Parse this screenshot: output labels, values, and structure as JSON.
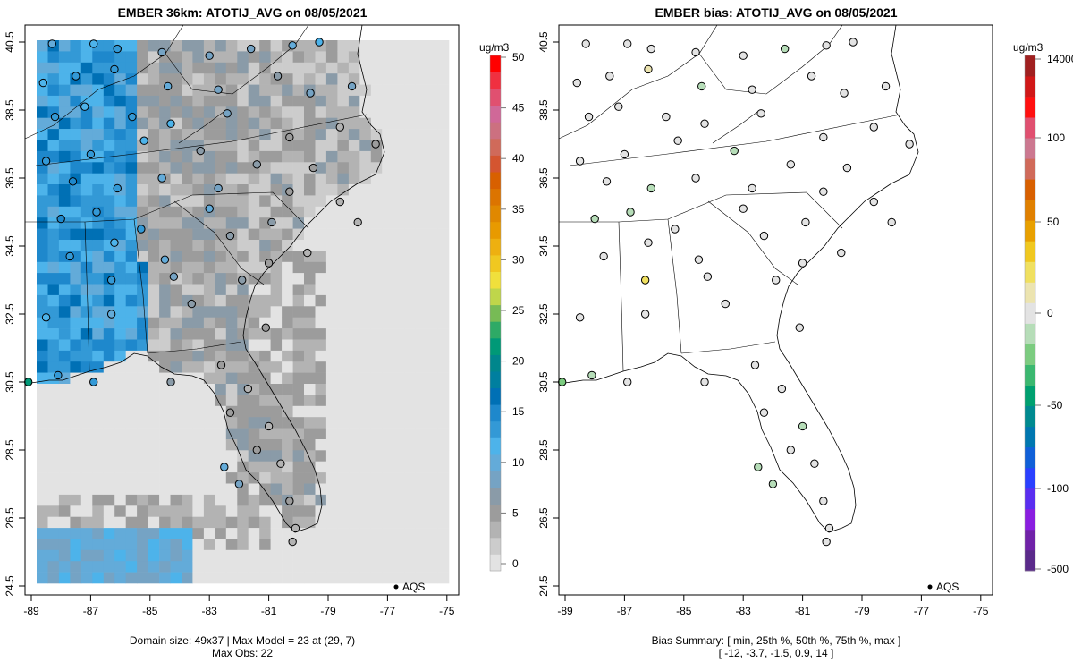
{
  "left_panel": {
    "title": "EMBER 36km: ATOTIJ_AVG on 08/05/2021",
    "footer_line1": "Domain size: 49x37 | Max Model = 23 at (29, 7)",
    "footer_line2": "Max Obs: 22",
    "legend_label": "AQS",
    "colorbar": {
      "unit": "ug/m3",
      "ticks": [
        "0",
        "5",
        "10",
        "15",
        "20",
        "25",
        "30",
        "35",
        "40",
        "45",
        "50"
      ],
      "colors": [
        "#e3e3e3",
        "#cccccc",
        "#b3b3b3",
        "#9c9c9c",
        "#8a9ba8",
        "#75a3c4",
        "#63abd9",
        "#4db3ea",
        "#3399d6",
        "#1e88cc",
        "#0070b5",
        "#007f9f",
        "#00868c",
        "#009977",
        "#2eaa66",
        "#77bb55",
        "#bfd64a",
        "#f0e03c",
        "#f0c820",
        "#eeb010",
        "#e89a00",
        "#e08800",
        "#dc7400",
        "#d86000",
        "#d45530",
        "#d06a5a",
        "#cc7080",
        "#d06898",
        "#e05070",
        "#f03040",
        "#ff0000"
      ]
    },
    "x_ticks": [
      "-89",
      "-87",
      "-85",
      "-83",
      "-81",
      "-79",
      "-77",
      "-75"
    ],
    "y_ticks": [
      "24.5",
      "26.5",
      "28.5",
      "30.5",
      "32.5",
      "34.5",
      "36.5",
      "38.5",
      "40.5"
    ]
  },
  "right_panel": {
    "title": "EMBER bias: ATOTIJ_AVG on 08/05/2021",
    "footer_line1": "Bias Summary: [ min, 25th %, 50th %, 75th %, max ]",
    "footer_line2": "[ -12,   -3.7,   -1.5,   0.9,   14 ]",
    "legend_label": "AQS",
    "colorbar": {
      "unit": "ug/m3",
      "ticks": [
        "-500",
        "-100",
        "-50",
        "0",
        "50",
        "100",
        "14000"
      ],
      "colors": [
        "#5a2a8a",
        "#7022a8",
        "#8a1ee0",
        "#5a2ef0",
        "#2a40ff",
        "#1060d8",
        "#0077b0",
        "#008a90",
        "#00a070",
        "#3bb870",
        "#7ccc80",
        "#b6ddb8",
        "#e3e3e3",
        "#ece4b0",
        "#f0e060",
        "#f0c820",
        "#e8a000",
        "#e08000",
        "#d86000",
        "#d06a5a",
        "#cc7890",
        "#e05070",
        "#ff1010",
        "#d01818",
        "#a02020"
      ]
    },
    "x_ticks": [
      "-89",
      "-87",
      "-85",
      "-83",
      "-81",
      "-79",
      "-77",
      "-75"
    ],
    "y_ticks": [
      "24.5",
      "26.5",
      "28.5",
      "30.5",
      "32.5",
      "34.5",
      "36.5",
      "38.5",
      "40.5"
    ]
  },
  "sites": [
    {
      "lon": -88.3,
      "lat": 40.45,
      "obs": 11,
      "bias": -2
    },
    {
      "lon": -86.9,
      "lat": 40.45,
      "obs": 12,
      "bias": -1
    },
    {
      "lon": -86.1,
      "lat": 40.3,
      "obs": 13,
      "bias": -1
    },
    {
      "lon": -84.6,
      "lat": 40.2,
      "obs": 9,
      "bias": -3
    },
    {
      "lon": -83.0,
      "lat": 40.1,
      "obs": 8,
      "bias": -2
    },
    {
      "lon": -81.6,
      "lat": 40.3,
      "obs": 9,
      "bias": -4
    },
    {
      "lon": -80.2,
      "lat": 40.4,
      "obs": 10,
      "bias": -3
    },
    {
      "lon": -79.3,
      "lat": 40.5,
      "obs": 12,
      "bias": 2
    },
    {
      "lon": -88.6,
      "lat": 39.3,
      "obs": 12,
      "bias": -1
    },
    {
      "lon": -87.5,
      "lat": 39.5,
      "obs": 13,
      "bias": 0
    },
    {
      "lon": -86.2,
      "lat": 39.7,
      "obs": 14,
      "bias": 3
    },
    {
      "lon": -84.4,
      "lat": 39.2,
      "obs": 11,
      "bias": -5
    },
    {
      "lon": -82.7,
      "lat": 39.1,
      "obs": 9,
      "bias": -2
    },
    {
      "lon": -80.7,
      "lat": 39.5,
      "obs": 7,
      "bias": -3
    },
    {
      "lon": -79.6,
      "lat": 39.0,
      "obs": 8,
      "bias": -1
    },
    {
      "lon": -78.2,
      "lat": 39.2,
      "obs": 9,
      "bias": -2
    },
    {
      "lon": -88.2,
      "lat": 38.3,
      "obs": 14,
      "bias": 1
    },
    {
      "lon": -87.2,
      "lat": 38.6,
      "obs": 12,
      "bias": -1
    },
    {
      "lon": -85.6,
      "lat": 38.3,
      "obs": 13,
      "bias": -2
    },
    {
      "lon": -84.3,
      "lat": 38.1,
      "obs": 12,
      "bias": -3
    },
    {
      "lon": -82.4,
      "lat": 38.4,
      "obs": 8,
      "bias": -1
    },
    {
      "lon": -80.3,
      "lat": 37.7,
      "obs": 5,
      "bias": -2
    },
    {
      "lon": -78.6,
      "lat": 38.0,
      "obs": 4,
      "bias": 0
    },
    {
      "lon": -77.4,
      "lat": 37.5,
      "obs": 5,
      "bias": -1
    },
    {
      "lon": -88.5,
      "lat": 37.0,
      "obs": 14,
      "bias": -3
    },
    {
      "lon": -87.0,
      "lat": 37.2,
      "obs": 13,
      "bias": -1
    },
    {
      "lon": -85.2,
      "lat": 37.6,
      "obs": 12,
      "bias": -2
    },
    {
      "lon": -83.3,
      "lat": 37.3,
      "obs": 7,
      "bias": -4
    },
    {
      "lon": -81.4,
      "lat": 36.9,
      "obs": 6,
      "bias": -3
    },
    {
      "lon": -79.5,
      "lat": 36.8,
      "obs": 5,
      "bias": -2
    },
    {
      "lon": -87.6,
      "lat": 36.4,
      "obs": 15,
      "bias": -1
    },
    {
      "lon": -86.1,
      "lat": 36.2,
      "obs": 14,
      "bias": -6
    },
    {
      "lon": -84.6,
      "lat": 36.5,
      "obs": 11,
      "bias": -3
    },
    {
      "lon": -82.7,
      "lat": 36.2,
      "obs": 8,
      "bias": -2
    },
    {
      "lon": -80.3,
      "lat": 36.1,
      "obs": 5,
      "bias": -1
    },
    {
      "lon": -78.6,
      "lat": 35.8,
      "obs": 4,
      "bias": -2
    },
    {
      "lon": -88.0,
      "lat": 35.3,
      "obs": 16,
      "bias": -8
    },
    {
      "lon": -86.8,
      "lat": 35.5,
      "obs": 14,
      "bias": -4
    },
    {
      "lon": -85.3,
      "lat": 35.0,
      "obs": 13,
      "bias": -3
    },
    {
      "lon": -83.0,
      "lat": 35.6,
      "obs": 10,
      "bias": -2
    },
    {
      "lon": -80.9,
      "lat": 35.2,
      "obs": 6,
      "bias": -3
    },
    {
      "lon": -78.0,
      "lat": 35.2,
      "obs": 4,
      "bias": 0
    },
    {
      "lon": -87.7,
      "lat": 34.2,
      "obs": 13,
      "bias": -2
    },
    {
      "lon": -86.2,
      "lat": 34.6,
      "obs": 12,
      "bias": -3
    },
    {
      "lon": -84.5,
      "lat": 34.1,
      "obs": 10,
      "bias": -2
    },
    {
      "lon": -82.3,
      "lat": 34.8,
      "obs": 7,
      "bias": -1
    },
    {
      "lon": -81.0,
      "lat": 34.0,
      "obs": 5,
      "bias": -1
    },
    {
      "lon": -79.7,
      "lat": 34.3,
      "obs": 4,
      "bias": -2
    },
    {
      "lon": -88.5,
      "lat": 32.4,
      "obs": 12,
      "bias": -1
    },
    {
      "lon": -86.3,
      "lat": 32.5,
      "obs": 11,
      "bias": -2
    },
    {
      "lon": -84.2,
      "lat": 33.6,
      "obs": 9,
      "bias": -3
    },
    {
      "lon": -83.6,
      "lat": 32.8,
      "obs": 7,
      "bias": -2
    },
    {
      "lon": -81.9,
      "lat": 33.5,
      "obs": 6,
      "bias": -1
    },
    {
      "lon": -81.1,
      "lat": 32.1,
      "obs": 5,
      "bias": -2
    },
    {
      "lon": -88.1,
      "lat": 30.7,
      "obs": 14,
      "bias": -4
    },
    {
      "lon": -86.9,
      "lat": 30.5,
      "obs": 13,
      "bias": -1
    },
    {
      "lon": -84.3,
      "lat": 30.5,
      "obs": 6,
      "bias": -2
    },
    {
      "lon": -82.6,
      "lat": 31.0,
      "obs": 5,
      "bias": -1
    },
    {
      "lon": -81.7,
      "lat": 30.3,
      "obs": 4,
      "bias": -3
    },
    {
      "lon": -82.3,
      "lat": 29.6,
      "obs": 5,
      "bias": -2
    },
    {
      "lon": -81.0,
      "lat": 29.2,
      "obs": 4,
      "bias": -4
    },
    {
      "lon": -82.5,
      "lat": 28.0,
      "obs": 11,
      "bias": -8
    },
    {
      "lon": -81.4,
      "lat": 28.5,
      "obs": 5,
      "bias": -3
    },
    {
      "lon": -80.6,
      "lat": 28.1,
      "obs": 4,
      "bias": -2
    },
    {
      "lon": -82.0,
      "lat": 27.5,
      "obs": 9,
      "bias": -5
    },
    {
      "lon": -80.3,
      "lat": 27.0,
      "obs": 5,
      "bias": -3
    },
    {
      "lon": -80.1,
      "lat": 26.2,
      "obs": 4,
      "bias": -2
    },
    {
      "lon": -80.2,
      "lat": 25.8,
      "obs": 3,
      "bias": -1
    },
    {
      "lon": -89.1,
      "lat": 30.5,
      "obs": 22,
      "bias": -12
    },
    {
      "lon": -86.3,
      "lat": 33.5,
      "obs": 13,
      "bias": 14
    }
  ]
}
